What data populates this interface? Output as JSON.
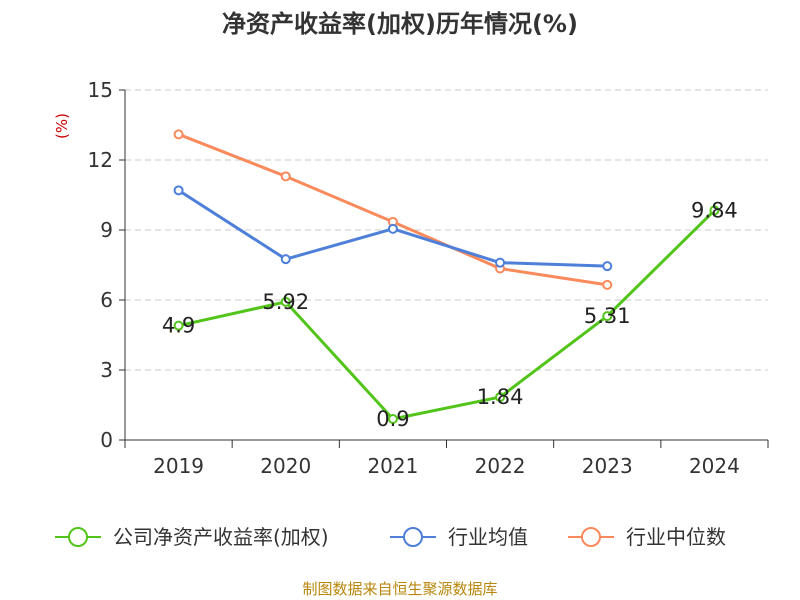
{
  "chart_data": {
    "type": "line",
    "title": "净资产收益率(加权)历年情况(%)",
    "ylabel": "(%)",
    "xlabel": "",
    "categories": [
      "2019",
      "2020",
      "2021",
      "2022",
      "2023",
      "2024"
    ],
    "ylim": [
      0,
      15
    ],
    "yticks": [
      0,
      3,
      6,
      9,
      12,
      15
    ],
    "grid": true,
    "legend_position": "bottom",
    "series": [
      {
        "name": "公司净资产收益率(加权)",
        "color": "#52c41a",
        "values": [
          4.9,
          5.92,
          0.9,
          1.84,
          5.31,
          9.84
        ],
        "labels": [
          "4.9",
          "5.92",
          "0.9",
          "1.84",
          "5.31",
          "9.84"
        ]
      },
      {
        "name": "行业均值",
        "color": "#4e7fd9",
        "values": [
          10.7,
          7.75,
          9.05,
          7.6,
          7.45,
          null
        ]
      },
      {
        "name": "行业中位数",
        "color": "#f98a5c",
        "values": [
          13.1,
          11.3,
          9.35,
          7.35,
          6.65,
          null
        ]
      }
    ],
    "source": "制图数据来自恒生聚源数据库"
  }
}
